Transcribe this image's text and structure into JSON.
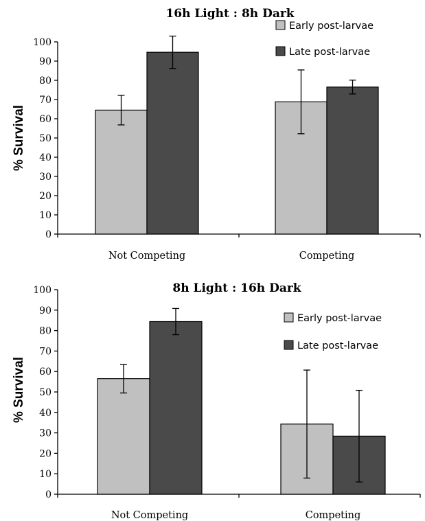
{
  "colors": {
    "early": "#c0c0c0",
    "late": "#4a4a4a"
  },
  "chart_data": [
    {
      "type": "bar",
      "title": "16h Light : 8h Dark",
      "xlabel": "",
      "ylabel": "% Survival",
      "ylim": [
        0,
        100
      ],
      "yticks": [
        0,
        10,
        20,
        30,
        40,
        50,
        60,
        70,
        80,
        90,
        100
      ],
      "categories": [
        "Not Competing",
        "Competing"
      ],
      "legend_position": "top-right",
      "series": [
        {
          "name": "Early post-larvae",
          "color": "#c0c0c0",
          "values": [
            64.5,
            68.8
          ],
          "errors": [
            7.7,
            16.6
          ]
        },
        {
          "name": "Late post-larvae",
          "color": "#4a4a4a",
          "values": [
            94.6,
            76.5
          ],
          "errors": [
            8.4,
            3.6
          ]
        }
      ]
    },
    {
      "type": "bar",
      "title": "8h Light : 16h Dark",
      "xlabel": "",
      "ylabel": "% Survival",
      "ylim": [
        0,
        100
      ],
      "yticks": [
        0,
        10,
        20,
        30,
        40,
        50,
        60,
        70,
        80,
        90,
        100
      ],
      "categories": [
        "Not Competing",
        "Competing"
      ],
      "legend_position": "right",
      "series": [
        {
          "name": "Early post-larvae",
          "color": "#c0c0c0",
          "values": [
            56.5,
            34.3
          ],
          "errors": [
            7.0,
            26.4
          ]
        },
        {
          "name": "Late post-larvae",
          "color": "#4a4a4a",
          "values": [
            84.4,
            28.4
          ],
          "errors": [
            6.4,
            22.4
          ]
        }
      ]
    }
  ]
}
